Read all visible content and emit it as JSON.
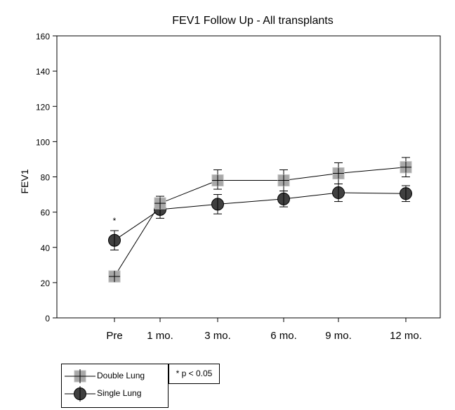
{
  "chart_data": {
    "type": "line",
    "title": "FEV1 Follow Up - All transplants",
    "xlabel": "",
    "ylabel": "FEV1",
    "categories": [
      "Pre",
      "1 mo.",
      "3 mo.",
      "6 mo.",
      "9 mo.",
      "12 mo."
    ],
    "ylim": [
      0,
      160
    ],
    "yticks": [
      "0",
      "20",
      "40",
      "60",
      "80",
      "100",
      "120",
      "140",
      "160"
    ],
    "grid": false,
    "series": [
      {
        "name": "Double Lung",
        "marker": "square-cross",
        "color": "#a8a8a8",
        "values": [
          23.5,
          65,
          78,
          78,
          82,
          85.5
        ],
        "err_low": [
          23.5,
          62,
          73,
          72,
          76,
          80
        ],
        "err_high": [
          23.5,
          69,
          84,
          84,
          88,
          91
        ]
      },
      {
        "name": "Single Lung",
        "marker": "circle-cross",
        "color": "#404040",
        "values": [
          44,
          61.5,
          64.5,
          67.5,
          71,
          70.5
        ],
        "err_low": [
          38.5,
          56.5,
          59,
          63,
          66,
          66
        ],
        "err_high": [
          49.5,
          67,
          70,
          72,
          76,
          75
        ]
      }
    ],
    "annotations": [
      {
        "text": "*",
        "category": "Pre",
        "y": 55
      }
    ],
    "legend": {
      "position": "bottom-left"
    },
    "note": "* p < 0.05"
  }
}
